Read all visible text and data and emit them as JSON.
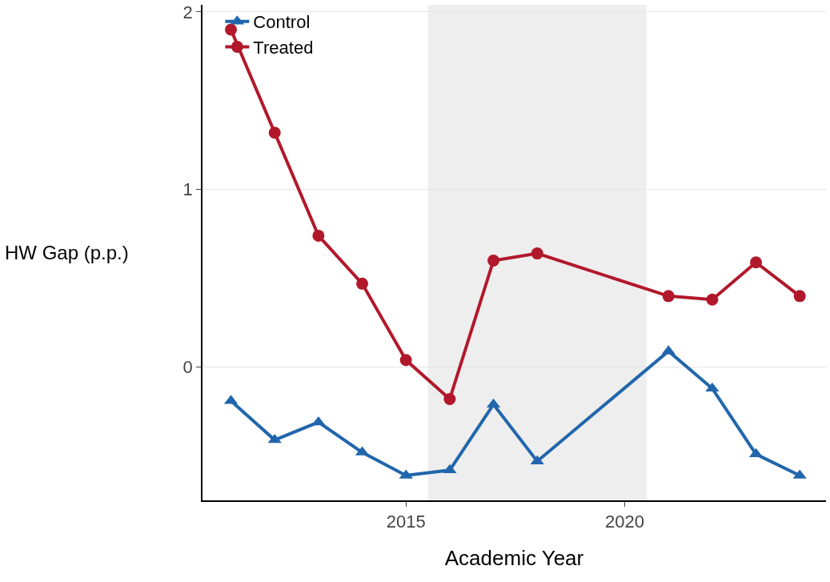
{
  "chart_data": {
    "type": "line",
    "xlabel": "Academic Year",
    "ylabel": "HW Gap (p.p.)",
    "x": [
      2011,
      2012,
      2013,
      2014,
      2015,
      2016,
      2017,
      2018,
      2021,
      2022,
      2023,
      2024
    ],
    "series": [
      {
        "name": "Control",
        "color": "#2166ac",
        "marker": "triangle",
        "values": [
          -0.19,
          -0.41,
          -0.31,
          -0.48,
          -0.61,
          -0.58,
          -0.21,
          -0.53,
          0.09,
          -0.12,
          -0.49,
          -0.61
        ]
      },
      {
        "name": "Treated",
        "color": "#b2182b",
        "marker": "circle",
        "values": [
          1.9,
          1.32,
          0.74,
          0.47,
          0.04,
          -0.18,
          0.6,
          0.64,
          0.4,
          0.38,
          0.59,
          0.4
        ]
      }
    ],
    "bands": [
      {
        "axis": "x",
        "from": 2015.5,
        "to": 2020.5,
        "color": "#eeeeee"
      }
    ],
    "xlim": [
      2010.35,
      2024.6
    ],
    "xticks": [
      2015,
      2020
    ],
    "ylim": [
      -0.75,
      2.04
    ],
    "yticks": [
      0,
      1,
      2
    ],
    "grid": "y",
    "legend": "top left",
    "line_style": "solid"
  }
}
